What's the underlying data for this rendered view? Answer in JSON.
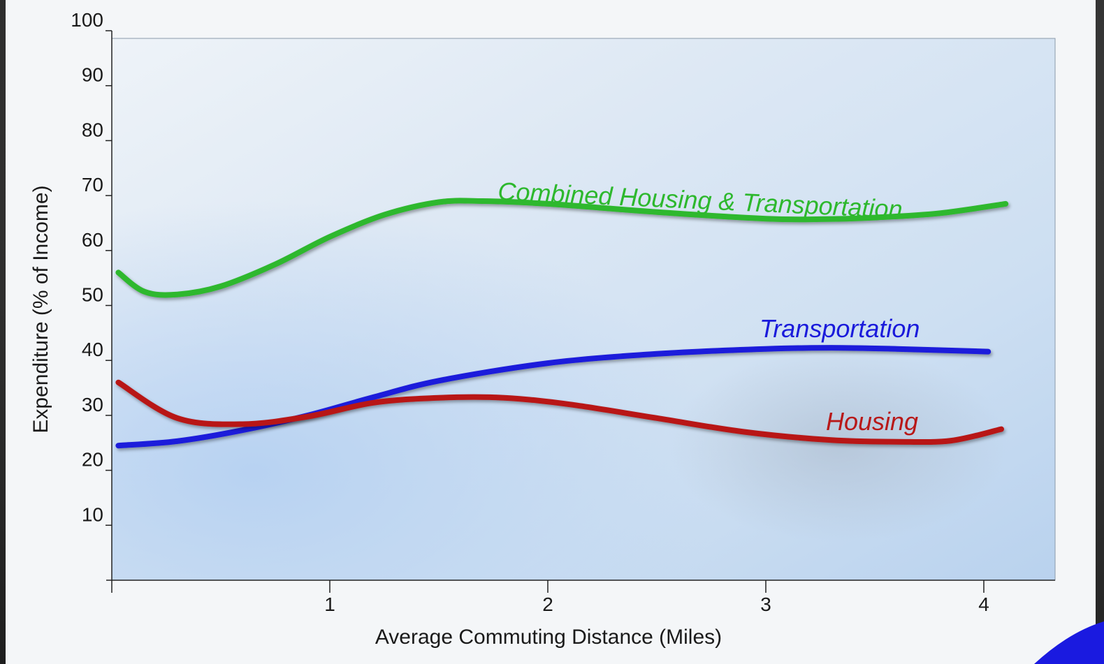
{
  "chart_data": {
    "type": "line",
    "title": "",
    "xlabel": "Average Commuting Distance (Miles)",
    "ylabel": "Expenditure (% of  Income)",
    "xlim": [
      0,
      4.3
    ],
    "ylim": [
      0,
      100
    ],
    "x_ticks": [
      1,
      2,
      3,
      4
    ],
    "x_tick_labels": [
      "1",
      "2",
      "3",
      "4"
    ],
    "y_ticks": [
      10,
      20,
      30,
      40,
      50,
      60,
      70,
      80,
      90,
      100
    ],
    "y_tick_labels": [
      "10",
      "20",
      "30",
      "40",
      "50",
      "60",
      "70",
      "80",
      "90",
      "100"
    ],
    "grid": false,
    "legend": "none (series labelled inline)",
    "series": [
      {
        "name": "Combined Housing & Transportation",
        "color": "#2db82d",
        "points": [
          [
            0.03,
            56
          ],
          [
            0.15,
            52.5
          ],
          [
            0.3,
            52
          ],
          [
            0.5,
            53.5
          ],
          [
            0.75,
            57.5
          ],
          [
            1.0,
            62.5
          ],
          [
            1.25,
            66.5
          ],
          [
            1.5,
            68.8
          ],
          [
            1.7,
            69
          ],
          [
            2.0,
            68.5
          ],
          [
            2.5,
            67
          ],
          [
            3.0,
            65.8
          ],
          [
            3.25,
            65.7
          ],
          [
            3.5,
            66
          ],
          [
            3.8,
            66.8
          ],
          [
            4.1,
            68.5
          ]
        ]
      },
      {
        "name": "Transportation",
        "color": "#1a1adb",
        "points": [
          [
            0.03,
            24.5
          ],
          [
            0.3,
            25.3
          ],
          [
            0.6,
            27.3
          ],
          [
            0.9,
            30
          ],
          [
            1.2,
            33.3
          ],
          [
            1.5,
            36.3
          ],
          [
            2.0,
            39.5
          ],
          [
            2.5,
            41.2
          ],
          [
            3.0,
            42.1
          ],
          [
            3.3,
            42.3
          ],
          [
            3.6,
            42.1
          ],
          [
            4.02,
            41.6
          ]
        ]
      },
      {
        "name": "Housing",
        "color": "#b81818",
        "points": [
          [
            0.03,
            36
          ],
          [
            0.3,
            29.5
          ],
          [
            0.6,
            28.4
          ],
          [
            0.9,
            29.8
          ],
          [
            1.2,
            32.3
          ],
          [
            1.5,
            33.2
          ],
          [
            1.8,
            33.2
          ],
          [
            2.1,
            32
          ],
          [
            2.5,
            29.5
          ],
          [
            2.9,
            27
          ],
          [
            3.3,
            25.5
          ],
          [
            3.6,
            25.2
          ],
          [
            3.85,
            25.4
          ],
          [
            4.08,
            27.5
          ]
        ]
      }
    ]
  },
  "series_labels": {
    "combined": "Combined Housing & Transportation",
    "transportation": "Transportation",
    "housing": "Housing"
  }
}
